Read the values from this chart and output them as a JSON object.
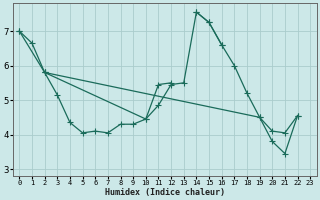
{
  "xlabel": "Humidex (Indice chaleur)",
  "bg_color": "#cce8e8",
  "grid_color": "#aacccc",
  "line_color": "#1a6b5a",
  "ylim": [
    2.8,
    7.8
  ],
  "xlim": [
    -0.5,
    23.5
  ],
  "yticks": [
    3,
    4,
    5,
    6,
    7
  ],
  "xticks": [
    0,
    1,
    2,
    3,
    4,
    5,
    6,
    7,
    8,
    9,
    10,
    11,
    12,
    13,
    14,
    15,
    16,
    17,
    18,
    19,
    20,
    21,
    22,
    23
  ],
  "line1": {
    "x": [
      0,
      1,
      2,
      3,
      4,
      5,
      6,
      7,
      8,
      9,
      10,
      11,
      12
    ],
    "y": [
      7.0,
      6.65,
      5.8,
      5.15,
      4.35,
      4.05,
      4.1,
      4.05,
      4.3,
      4.3,
      4.45,
      5.45,
      5.5
    ]
  },
  "line2": {
    "x": [
      2,
      10,
      11,
      12,
      13,
      14,
      15,
      16
    ],
    "y": [
      5.8,
      4.45,
      4.85,
      5.45,
      5.5,
      7.55,
      7.25,
      6.6
    ]
  },
  "line3": {
    "x": [
      14,
      15,
      16,
      17,
      18,
      19,
      20,
      21,
      22
    ],
    "y": [
      7.55,
      7.25,
      6.6,
      6.0,
      5.2,
      4.5,
      4.1,
      4.05,
      4.55
    ]
  },
  "line4": {
    "x": [
      0,
      2,
      19,
      20,
      21,
      22
    ],
    "y": [
      7.0,
      5.8,
      4.5,
      3.8,
      3.45,
      4.55
    ]
  }
}
